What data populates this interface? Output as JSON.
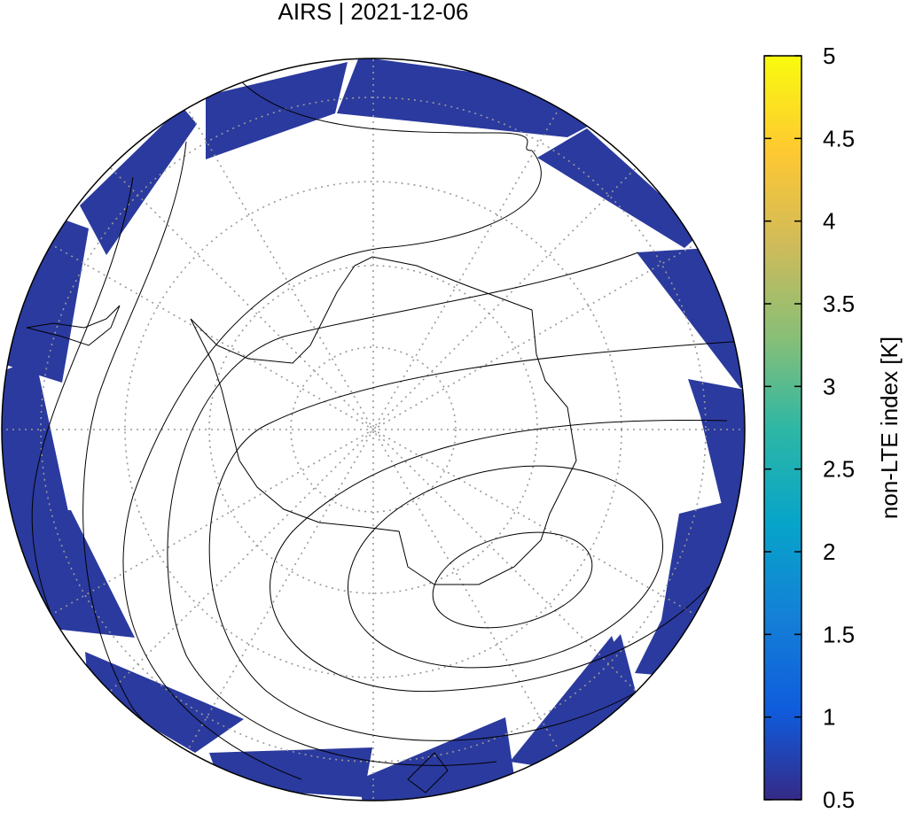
{
  "title": "AIRS | 2021-12-06",
  "colorbar": {
    "label": "non-LTE index [K]",
    "lim": [
      0.5,
      5
    ],
    "ticks": [
      0.5,
      1,
      1.5,
      2,
      2.5,
      3,
      3.5,
      4,
      4.5,
      5
    ]
  }
}
